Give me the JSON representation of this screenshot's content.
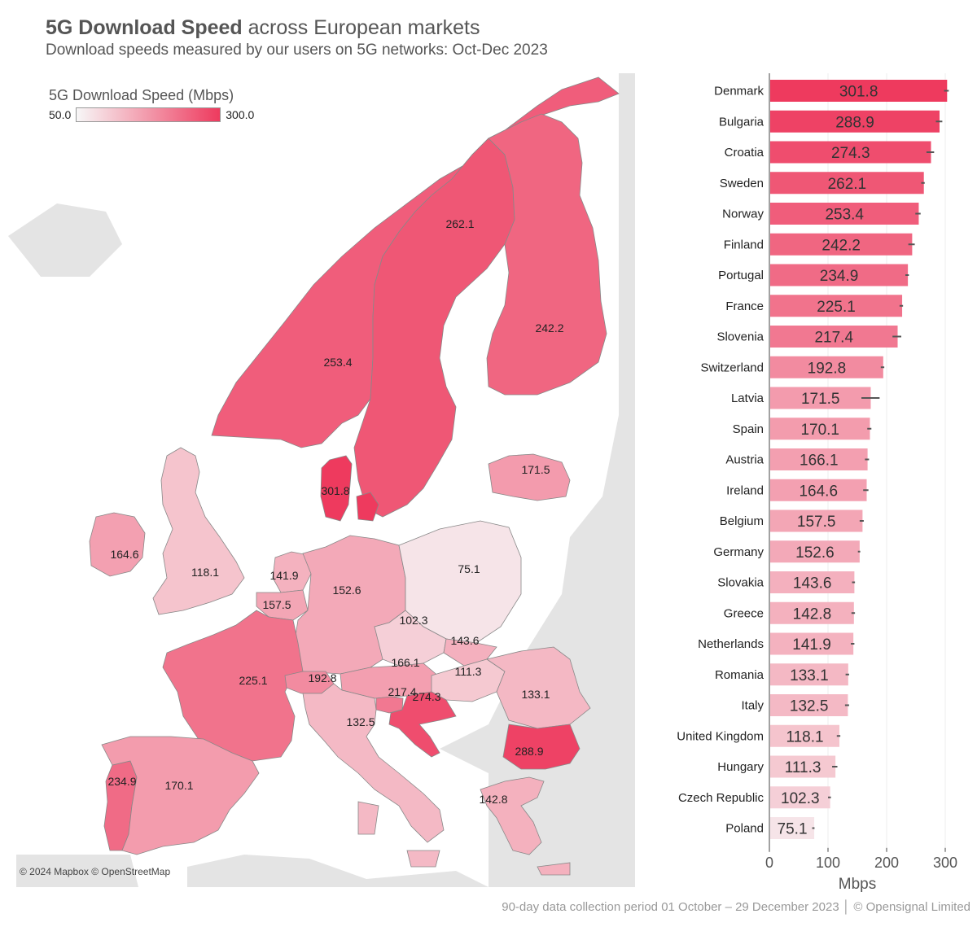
{
  "title": {
    "bold": "5G Download Speed",
    "rest": " across European markets",
    "subtitle": "Download speeds measured by our users on 5G networks: Oct-Dec 2023"
  },
  "legend": {
    "title": "5G Download Speed (Mbps)",
    "min_label": "50.0",
    "max_label": "300.0",
    "min": 50,
    "max": 300,
    "color_low": "#f7f7f7",
    "color_high": "#ee3a5e"
  },
  "map_credit": "© 2024 Mapbox © OpenStreetMap",
  "map_labels": [
    {
      "country": "Sweden",
      "value": "262.1"
    },
    {
      "country": "Finland",
      "value": "242.2"
    },
    {
      "country": "Norway",
      "value": "253.4"
    },
    {
      "country": "Latvia",
      "value": "171.5"
    },
    {
      "country": "Denmark",
      "value": "301.8"
    },
    {
      "country": "Ireland",
      "value": "164.6"
    },
    {
      "country": "United Kingdom",
      "value": "118.1"
    },
    {
      "country": "Netherlands",
      "value": "141.9"
    },
    {
      "country": "Belgium",
      "value": "157.5"
    },
    {
      "country": "Germany",
      "value": "152.6"
    },
    {
      "country": "Poland",
      "value": "75.1"
    },
    {
      "country": "Czech Republic",
      "value": "102.3"
    },
    {
      "country": "Slovakia",
      "value": "143.6"
    },
    {
      "country": "Austria",
      "value": "166.1"
    },
    {
      "country": "Hungary",
      "value": "111.3"
    },
    {
      "country": "France",
      "value": "225.1"
    },
    {
      "country": "Switzerland",
      "value": "192.8"
    },
    {
      "country": "Slovenia",
      "value": "217.4"
    },
    {
      "country": "Croatia",
      "value": "274.3"
    },
    {
      "country": "Romania",
      "value": "133.1"
    },
    {
      "country": "Italy",
      "value": "132.5"
    },
    {
      "country": "Bulgaria",
      "value": "288.9"
    },
    {
      "country": "Portugal",
      "value": "234.9"
    },
    {
      "country": "Spain",
      "value": "170.1"
    },
    {
      "country": "Greece",
      "value": "142.8"
    }
  ],
  "chart_data": {
    "type": "bar",
    "orientation": "horizontal",
    "categories": [
      "Denmark",
      "Bulgaria",
      "Croatia",
      "Sweden",
      "Norway",
      "Finland",
      "Portugal",
      "France",
      "Slovenia",
      "Switzerland",
      "Latvia",
      "Spain",
      "Austria",
      "Ireland",
      "Belgium",
      "Germany",
      "Slovakia",
      "Greece",
      "Netherlands",
      "Romania",
      "Italy",
      "United Kingdom",
      "Hungary",
      "Czech Republic",
      "Poland"
    ],
    "values": [
      301.8,
      288.9,
      274.3,
      262.1,
      253.4,
      242.2,
      234.9,
      225.1,
      217.4,
      192.8,
      171.5,
      170.1,
      166.1,
      164.6,
      157.5,
      152.6,
      143.6,
      142.8,
      141.9,
      133.1,
      132.5,
      118.1,
      111.3,
      102.3,
      75.1
    ],
    "value_labels": [
      "301.8",
      "288.9",
      "274.3",
      "262.1",
      "253.4",
      "242.2",
      "234.9",
      "225.1",
      "217.4",
      "192.8",
      "171.5",
      "170.1",
      "166.1",
      "164.6",
      "157.5",
      "152.6",
      "143.6",
      "142.8",
      "141.9",
      "133.1",
      "132.5",
      "118.1",
      "111.3",
      "102.3",
      "75.1"
    ],
    "error_low": [
      298,
      284,
      268,
      259,
      249,
      237,
      232,
      222,
      210,
      190,
      157,
      167,
      163,
      160,
      154,
      151,
      141,
      140,
      139,
      130,
      129,
      115,
      107,
      100,
      73
    ],
    "error_high": [
      306,
      295,
      281,
      265,
      258,
      248,
      238,
      228,
      225,
      196,
      188,
      174,
      170,
      169,
      161,
      155,
      146,
      146,
      145,
      136,
      136,
      121,
      116,
      105,
      77
    ],
    "xlabel": "Mbps",
    "ylabel": "",
    "xlim": [
      0,
      320
    ],
    "x_ticks": [
      0,
      100,
      200,
      300
    ],
    "grid": true,
    "color_scale": {
      "min": 50,
      "max": 300,
      "low": "#f7f7f7",
      "high": "#ee3a5e"
    }
  },
  "footer": "90-day data collection period 01 October – 29 December 2023 │ © Opensignal Limited"
}
